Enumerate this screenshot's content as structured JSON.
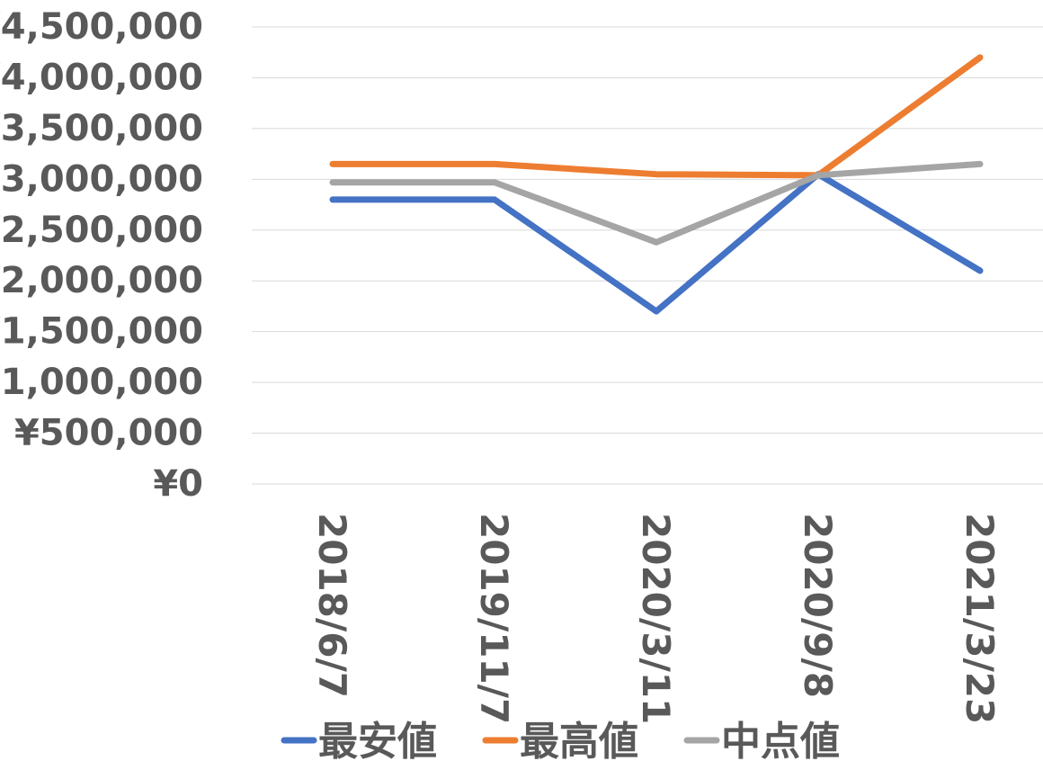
{
  "chart_data": {
    "type": "line",
    "categories": [
      "2018/6/7",
      "2019/11/7",
      "2020/3/11",
      "2020/9/8",
      "2021/3/23"
    ],
    "series": [
      {
        "name": "最安値",
        "values": [
          2800000,
          2800000,
          1700000,
          3050000,
          2100000
        ],
        "color": "#4472C4"
      },
      {
        "name": "最高値",
        "values": [
          3150000,
          3150000,
          3050000,
          3040000,
          4200000
        ],
        "color": "#ED7D31"
      },
      {
        "name": "中点値",
        "values": [
          2970000,
          2970000,
          2380000,
          3040000,
          3150000
        ],
        "color": "#A5A5A5"
      }
    ],
    "y_ticks": [
      "¥0",
      "¥500,000",
      "¥1,000,000",
      "¥1,500,000",
      "¥2,000,000",
      "¥2,500,000",
      "¥3,000,000",
      "¥3,500,000",
      "¥4,000,000",
      "¥4,500,000"
    ],
    "ylim": [
      0,
      4500000
    ],
    "grid": true,
    "legend_position": "bottom",
    "gridline_color": "#D9D9D9",
    "text_color": "#595959"
  }
}
